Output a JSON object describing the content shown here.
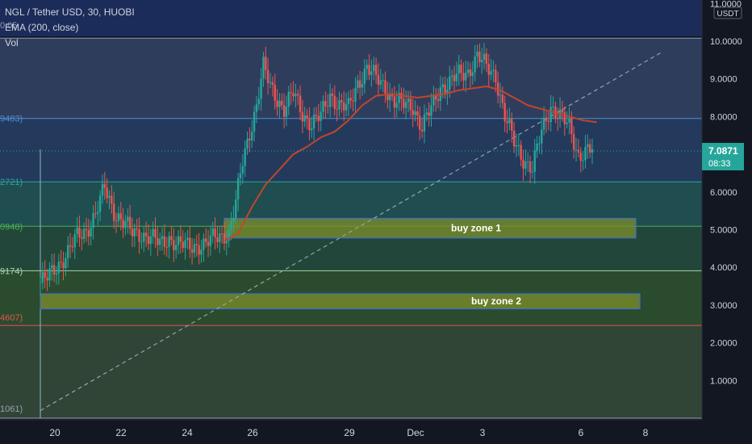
{
  "header": {
    "symbol_line": "NGL / Tether USD, 30, HUOBI",
    "indicator_line": "EMA (200, close)",
    "volume_label": "Vol"
  },
  "price_scale": {
    "currency": "USDT",
    "ticks": [
      "11.0000",
      "10.0000",
      "9.0000",
      "8.0000",
      "6.0000",
      "5.0000",
      "4.0000",
      "3.0000",
      "2.0000",
      "1.0000"
    ],
    "current_price": "7.0871",
    "countdown": "08:33",
    "current_color": "#26a69a"
  },
  "time_axis": {
    "labels": [
      "20",
      "22",
      "24",
      "26",
      "29",
      "Dec",
      "3",
      "6",
      "8"
    ]
  },
  "fib_left_labels": [
    "0.05",
    "9483)",
    "2721)",
    "0948)",
    "9174)",
    "4607)",
    "1061)"
  ],
  "zones": [
    {
      "label": "buy zone 1",
      "from": 4.78,
      "to": 5.3
    },
    {
      "label": "buy zone 2",
      "from": 2.9,
      "to": 3.3
    }
  ],
  "chart_data": {
    "type": "candlestick",
    "title": "NGL / Tether USD, 30, HUOBI",
    "y_unit": "USDT",
    "ylim": [
      0,
      11
    ],
    "fib_levels": [
      10.08,
      7.95,
      6.27,
      5.09,
      3.91,
      2.46,
      0.0
    ],
    "fib_band_colors": [
      "#2f3d5c",
      "#233a5c",
      "#1f4d50",
      "#22473a",
      "#2a4b2e",
      "#314537",
      "#4a2430"
    ],
    "fib_line_colors": [
      "#8c9bb8",
      "#4f8fd6",
      "#2aa6a0",
      "#4caf50",
      "#a5d6a7",
      "#e35454",
      "#9aa0ab"
    ],
    "price_path": [
      [
        0,
        3.6
      ],
      [
        3,
        3.7
      ],
      [
        8,
        4.1
      ],
      [
        12,
        4.4
      ],
      [
        16,
        4.8
      ],
      [
        20,
        5.0
      ],
      [
        24,
        5.4
      ],
      [
        28,
        6.1
      ],
      [
        32,
        5.5
      ],
      [
        36,
        5.2
      ],
      [
        40,
        4.9
      ],
      [
        44,
        4.9
      ],
      [
        48,
        4.8
      ],
      [
        52,
        4.6
      ],
      [
        56,
        4.8
      ],
      [
        60,
        4.6
      ],
      [
        64,
        4.55
      ],
      [
        68,
        4.6
      ],
      [
        72,
        4.6
      ],
      [
        76,
        4.8
      ],
      [
        80,
        4.9
      ],
      [
        82,
        4.9
      ],
      [
        85,
        5.7
      ],
      [
        88,
        6.8
      ],
      [
        91,
        7.6
      ],
      [
        94,
        8.3
      ],
      [
        97,
        9.3
      ],
      [
        100,
        8.8
      ],
      [
        103,
        8.5
      ],
      [
        106,
        8.2
      ],
      [
        110,
        8.6
      ],
      [
        114,
        8.1
      ],
      [
        118,
        7.8
      ],
      [
        122,
        8.0
      ],
      [
        126,
        8.6
      ],
      [
        130,
        8.3
      ],
      [
        134,
        8.2
      ],
      [
        138,
        8.9
      ],
      [
        142,
        9.3
      ],
      [
        146,
        9.0
      ],
      [
        150,
        8.8
      ],
      [
        154,
        8.4
      ],
      [
        158,
        8.3
      ],
      [
        162,
        8.3
      ],
      [
        166,
        7.7
      ],
      [
        170,
        8.2
      ],
      [
        174,
        8.8
      ],
      [
        178,
        8.9
      ],
      [
        182,
        9.1
      ],
      [
        186,
        9.2
      ],
      [
        190,
        9.6
      ],
      [
        194,
        9.3
      ],
      [
        198,
        9.1
      ],
      [
        202,
        8.0
      ],
      [
        206,
        7.3
      ],
      [
        210,
        6.9
      ],
      [
        214,
        6.6
      ],
      [
        218,
        7.6
      ],
      [
        222,
        8.3
      ],
      [
        226,
        8.0
      ],
      [
        230,
        7.7
      ],
      [
        234,
        7.0
      ],
      [
        238,
        7.1
      ],
      [
        240,
        7.09
      ]
    ],
    "ema_200": [
      [
        80,
        4.7
      ],
      [
        86,
        4.9
      ],
      [
        92,
        5.6
      ],
      [
        98,
        6.2
      ],
      [
        104,
        6.6
      ],
      [
        110,
        7.0
      ],
      [
        116,
        7.2
      ],
      [
        122,
        7.45
      ],
      [
        128,
        7.6
      ],
      [
        134,
        7.9
      ],
      [
        140,
        8.3
      ],
      [
        146,
        8.55
      ],
      [
        152,
        8.6
      ],
      [
        158,
        8.55
      ],
      [
        164,
        8.5
      ],
      [
        170,
        8.55
      ],
      [
        176,
        8.6
      ],
      [
        182,
        8.7
      ],
      [
        188,
        8.75
      ],
      [
        194,
        8.8
      ],
      [
        200,
        8.7
      ],
      [
        206,
        8.5
      ],
      [
        212,
        8.3
      ],
      [
        218,
        8.2
      ],
      [
        224,
        8.1
      ],
      [
        230,
        8.0
      ],
      [
        236,
        7.9
      ],
      [
        242,
        7.85
      ]
    ],
    "trendline": [
      [
        0,
        0.2
      ],
      [
        270,
        9.7
      ]
    ]
  }
}
